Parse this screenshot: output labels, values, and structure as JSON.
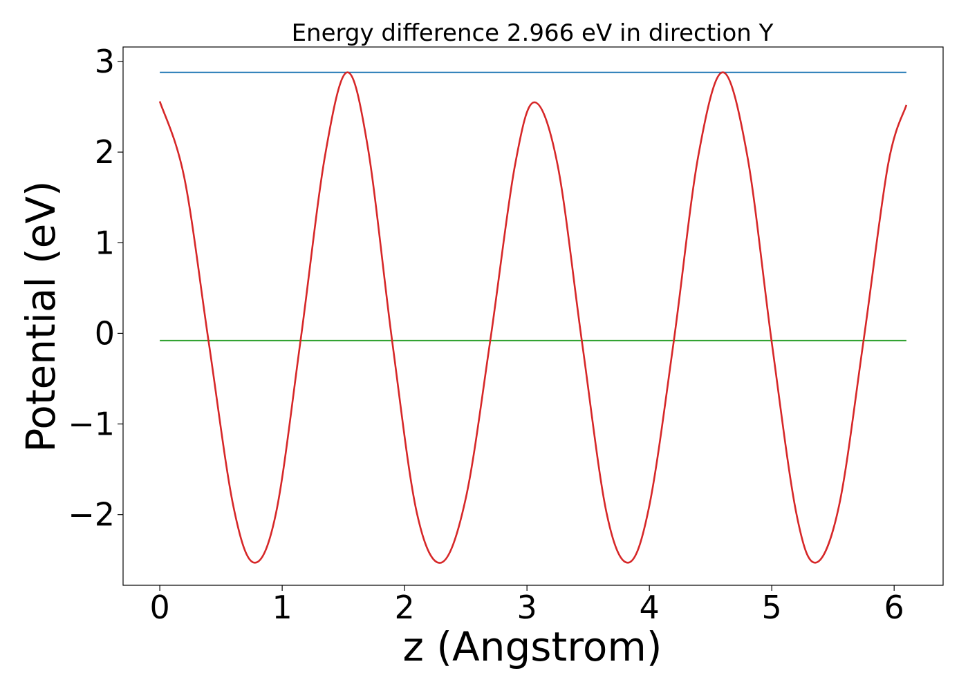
{
  "chart_data": {
    "type": "line",
    "title": "Energy difference 2.966 eV in direction Y",
    "xlabel": "z (Angstrom)",
    "ylabel": "Potential (eV)",
    "xlim": [
      -0.3,
      6.4
    ],
    "ylim": [
      -2.78,
      3.16
    ],
    "x_ticks": [
      0,
      1,
      2,
      3,
      4,
      5,
      6
    ],
    "x_tick_labels": [
      "0",
      "1",
      "2",
      "3",
      "4",
      "5",
      "6"
    ],
    "y_ticks": [
      -2,
      -1,
      0,
      1,
      2,
      3
    ],
    "y_tick_labels": [
      "−2",
      "−1",
      "0",
      "1",
      "2",
      "3"
    ],
    "grid": false,
    "legend": "none",
    "x_range": [
      0,
      6.1
    ],
    "series": [
      {
        "color": "#d62728",
        "x": [
          0.0,
          0.2,
          0.4,
          0.6,
          0.77,
          0.95,
          1.15,
          1.35,
          1.53,
          1.7,
          1.9,
          2.1,
          2.3,
          2.5,
          2.7,
          2.9,
          3.06,
          3.25,
          3.45,
          3.65,
          3.83,
          4.0,
          4.2,
          4.4,
          4.6,
          4.8,
          5.0,
          5.2,
          5.36,
          5.55,
          5.75,
          5.95,
          6.1
        ],
        "y": [
          2.56,
          1.72,
          -0.1,
          -1.9,
          -2.53,
          -1.98,
          -0.08,
          1.96,
          2.88,
          2.05,
          -0.1,
          -1.98,
          -2.53,
          -1.82,
          -0.08,
          1.84,
          2.55,
          1.86,
          -0.1,
          -1.98,
          -2.53,
          -1.9,
          -0.08,
          1.96,
          2.88,
          1.96,
          -0.1,
          -1.98,
          -2.53,
          -1.9,
          -0.08,
          1.86,
          2.52
        ]
      },
      {
        "color": "#1f77b4",
        "x": [
          0.0,
          6.1
        ],
        "y": [
          2.88,
          2.88
        ]
      },
      {
        "color": "#2ca02c",
        "x": [
          0.0,
          6.1
        ],
        "y": [
          -0.08,
          -0.08
        ]
      }
    ]
  }
}
